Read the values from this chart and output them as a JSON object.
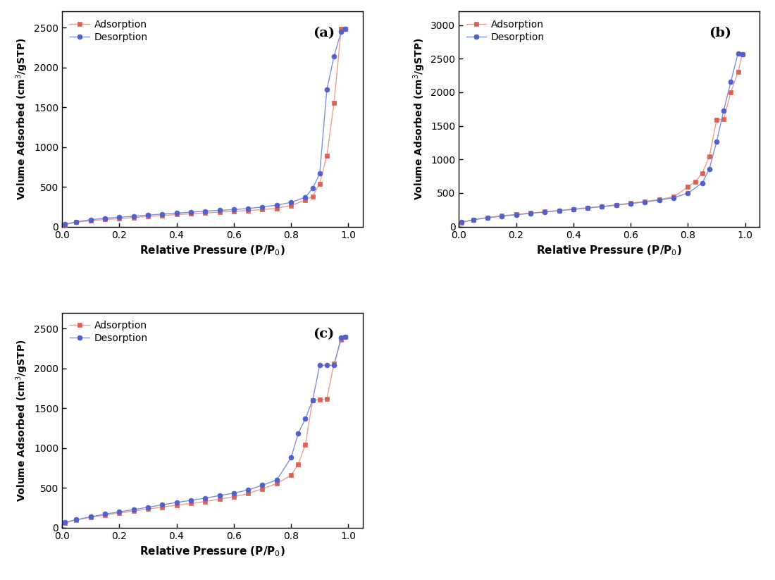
{
  "plots": [
    {
      "label": "(a)",
      "adsorption_x": [
        0.01,
        0.05,
        0.1,
        0.15,
        0.2,
        0.25,
        0.3,
        0.35,
        0.4,
        0.45,
        0.5,
        0.55,
        0.6,
        0.65,
        0.7,
        0.75,
        0.8,
        0.85,
        0.875,
        0.9,
        0.925,
        0.95,
        0.975,
        0.99
      ],
      "adsorption_y": [
        25,
        55,
        75,
        90,
        100,
        115,
        128,
        140,
        152,
        162,
        172,
        182,
        192,
        202,
        215,
        230,
        265,
        335,
        380,
        540,
        890,
        1550,
        2480,
        2480
      ],
      "desorption_x": [
        0.99,
        0.975,
        0.95,
        0.925,
        0.9,
        0.875,
        0.85,
        0.8,
        0.75,
        0.7,
        0.65,
        0.6,
        0.55,
        0.5,
        0.45,
        0.4,
        0.35,
        0.3,
        0.25,
        0.2,
        0.15,
        0.1,
        0.05,
        0.01
      ],
      "desorption_y": [
        2480,
        2450,
        2140,
        1720,
        665,
        480,
        370,
        305,
        270,
        248,
        228,
        215,
        205,
        195,
        182,
        170,
        158,
        145,
        130,
        118,
        105,
        88,
        62,
        30
      ],
      "ylim": [
        0,
        2700
      ],
      "yticks": [
        0,
        500,
        1000,
        1500,
        2000,
        2500
      ]
    },
    {
      "label": "(b)",
      "adsorption_x": [
        0.01,
        0.05,
        0.1,
        0.15,
        0.2,
        0.25,
        0.3,
        0.35,
        0.4,
        0.45,
        0.5,
        0.55,
        0.6,
        0.65,
        0.7,
        0.75,
        0.8,
        0.825,
        0.85,
        0.875,
        0.9,
        0.925,
        0.95,
        0.975,
        0.99
      ],
      "adsorption_y": [
        60,
        105,
        135,
        162,
        182,
        202,
        222,
        242,
        262,
        282,
        302,
        325,
        350,
        375,
        405,
        445,
        590,
        670,
        790,
        1045,
        1590,
        1600,
        2000,
        2300,
        2570
      ],
      "desorption_x": [
        0.99,
        0.975,
        0.95,
        0.925,
        0.9,
        0.875,
        0.85,
        0.8,
        0.75,
        0.7,
        0.65,
        0.6,
        0.55,
        0.5,
        0.45,
        0.4,
        0.35,
        0.3,
        0.25,
        0.2,
        0.15,
        0.1,
        0.05,
        0.01
      ],
      "desorption_y": [
        2570,
        2580,
        2160,
        1730,
        1260,
        860,
        650,
        500,
        430,
        395,
        368,
        345,
        320,
        298,
        278,
        258,
        238,
        218,
        198,
        178,
        158,
        133,
        102,
        68
      ],
      "ylim": [
        0,
        3200
      ],
      "yticks": [
        0,
        500,
        1000,
        1500,
        2000,
        2500,
        3000
      ]
    },
    {
      "label": "(c)",
      "adsorption_x": [
        0.01,
        0.05,
        0.1,
        0.15,
        0.2,
        0.25,
        0.3,
        0.35,
        0.4,
        0.45,
        0.5,
        0.55,
        0.6,
        0.65,
        0.7,
        0.75,
        0.8,
        0.825,
        0.85,
        0.875,
        0.9,
        0.925,
        0.95,
        0.975,
        0.99
      ],
      "adsorption_y": [
        60,
        100,
        130,
        160,
        185,
        210,
        235,
        260,
        285,
        305,
        330,
        360,
        390,
        430,
        490,
        555,
        660,
        800,
        1045,
        1600,
        1610,
        1620,
        2060,
        2360,
        2400
      ],
      "desorption_x": [
        0.99,
        0.975,
        0.95,
        0.925,
        0.9,
        0.875,
        0.85,
        0.825,
        0.8,
        0.75,
        0.7,
        0.65,
        0.6,
        0.55,
        0.5,
        0.45,
        0.4,
        0.35,
        0.3,
        0.25,
        0.2,
        0.15,
        0.1,
        0.05,
        0.01
      ],
      "desorption_y": [
        2400,
        2390,
        2040,
        2040,
        2040,
        1600,
        1370,
        1185,
        880,
        600,
        535,
        475,
        435,
        405,
        372,
        345,
        318,
        288,
        258,
        228,
        200,
        172,
        138,
        102,
        68
      ],
      "ylim": [
        0,
        2700
      ],
      "yticks": [
        0,
        500,
        1000,
        1500,
        2000,
        2500
      ]
    }
  ],
  "adsorption_color": "#e06050",
  "desorption_color": "#5060cc",
  "adsorption_line_color": "#e8a090",
  "desorption_line_color": "#8090dd",
  "xlabel": "Relative Pressure (P/P$_0$)",
  "ylabel": "Volume Adsorbed (cm$^3$/gSTP)",
  "bg_color": "#ffffff",
  "marker_size": 5,
  "line_width": 1.0,
  "tick_fontsize": 10,
  "label_fontsize": 11,
  "legend_fontsize": 10
}
